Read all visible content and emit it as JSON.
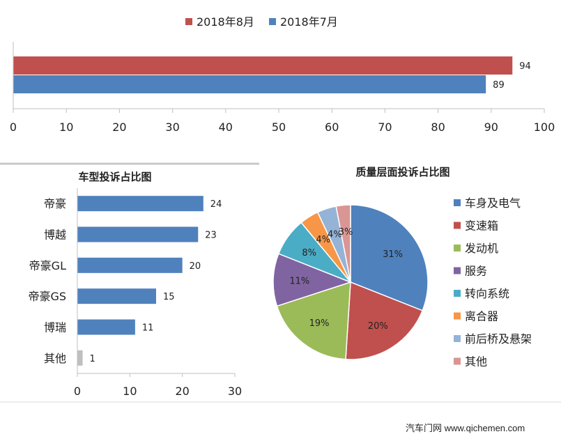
{
  "chart_data": [
    {
      "type": "bar",
      "orientation": "horizontal",
      "legend": {
        "position": "top"
      },
      "series": [
        {
          "name": "2018年8月",
          "values": [
            94
          ],
          "color": "#c0504d"
        },
        {
          "name": "2018年7月",
          "values": [
            89
          ],
          "color": "#4f81bd"
        }
      ],
      "x_ticks": [
        "0",
        "10",
        "20",
        "30",
        "40",
        "50",
        "60",
        "70",
        "80",
        "90",
        "100"
      ],
      "xlim": [
        0,
        100
      ]
    },
    {
      "type": "bar",
      "orientation": "horizontal",
      "title": "车型投诉占比图",
      "categories": [
        "帝豪",
        "博越",
        "帝豪GL",
        "帝豪GS",
        "博瑞",
        "其他"
      ],
      "values": [
        24,
        23,
        20,
        15,
        11,
        1
      ],
      "colors": [
        "#4f81bd",
        "#4f81bd",
        "#4f81bd",
        "#4f81bd",
        "#4f81bd",
        "#bfbfbf"
      ],
      "x_ticks": [
        "0",
        "10",
        "20",
        "30"
      ],
      "xlim": [
        0,
        30
      ]
    },
    {
      "type": "pie",
      "title": "质量层面投诉占比图",
      "legend": {
        "position": "right"
      },
      "slices": [
        {
          "label": "车身及电气",
          "value": 31,
          "text": "31%",
          "color": "#4f81bd"
        },
        {
          "label": "变速箱",
          "value": 20,
          "text": "20%",
          "color": "#c0504d"
        },
        {
          "label": "发动机",
          "value": 19,
          "text": "19%",
          "color": "#9bbb59"
        },
        {
          "label": "服务",
          "value": 11,
          "text": "11%",
          "color": "#8064a2"
        },
        {
          "label": "转向系统",
          "value": 8,
          "text": "8%",
          "color": "#4bacc6"
        },
        {
          "label": "离合器",
          "value": 4,
          "text": "4%",
          "color": "#f79646"
        },
        {
          "label": "前后桥及悬架",
          "value": 4,
          "text": "4%",
          "color": "#95b3d7"
        },
        {
          "label": "其他",
          "value": 3,
          "text": "3%",
          "color": "#d99694"
        }
      ]
    }
  ],
  "footer": {
    "text": "汽车门网 www.qichemen.com"
  }
}
